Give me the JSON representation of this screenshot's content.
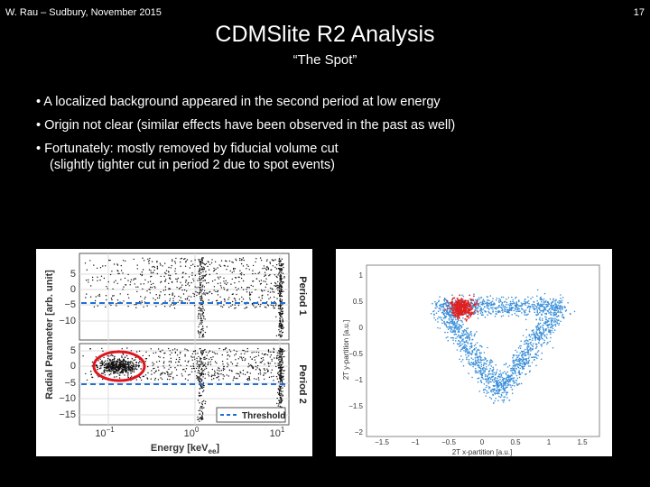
{
  "header": {
    "left": "W. Rau – Sudbury, November 2015",
    "page_number": "17"
  },
  "title": "CDMSlite R2 Analysis",
  "subtitle": "“The Spot”",
  "bullets": [
    {
      "text": "• A localized background appeared in the second period at low energy"
    },
    {
      "text": "• Origin not clear (similar effects have been observed in the past as well)"
    },
    {
      "text": "• Fortunately: mostly removed by fiducial volume cut",
      "continuation": "(slightly tighter cut in period 2 due to spot events)"
    }
  ],
  "figure_left": {
    "ylabel": "Radial Parameter [arb. unit]",
    "xlabel_main": "Energy [keV",
    "xlabel_sub": "ee",
    "xlabel_end": "]",
    "panel1_label": "Period 1",
    "panel2_label": "Period 2",
    "legend_label": "Threshold",
    "ticks_y_top": [
      "5",
      "0",
      "−5",
      "−10"
    ],
    "ticks_y_bottom": [
      "5",
      "0",
      "−5",
      "−10",
      "−15"
    ],
    "tick_x_labels": [
      {
        "base": "10",
        "exp": "−1"
      },
      {
        "base": "10",
        "exp": "0"
      },
      {
        "base": "10",
        "exp": "1"
      }
    ],
    "colors": {
      "threshold": "#1f6fd6",
      "highlight": "#e0141e"
    }
  },
  "figure_right": {
    "xlabel": "2T x-partition [a.u.]",
    "ylabel": "2T y-partition [a.u.]",
    "x_ticks": [
      "−1.5",
      "−1",
      "−0.5",
      "0",
      "0.5",
      "1",
      "1.5"
    ],
    "y_ticks": [
      "1",
      "0.5",
      "0",
      "−0.5",
      "−1",
      "−1.5",
      "−2"
    ],
    "colors": {
      "points": "#3a8fd9",
      "spot": "#e02020"
    }
  }
}
